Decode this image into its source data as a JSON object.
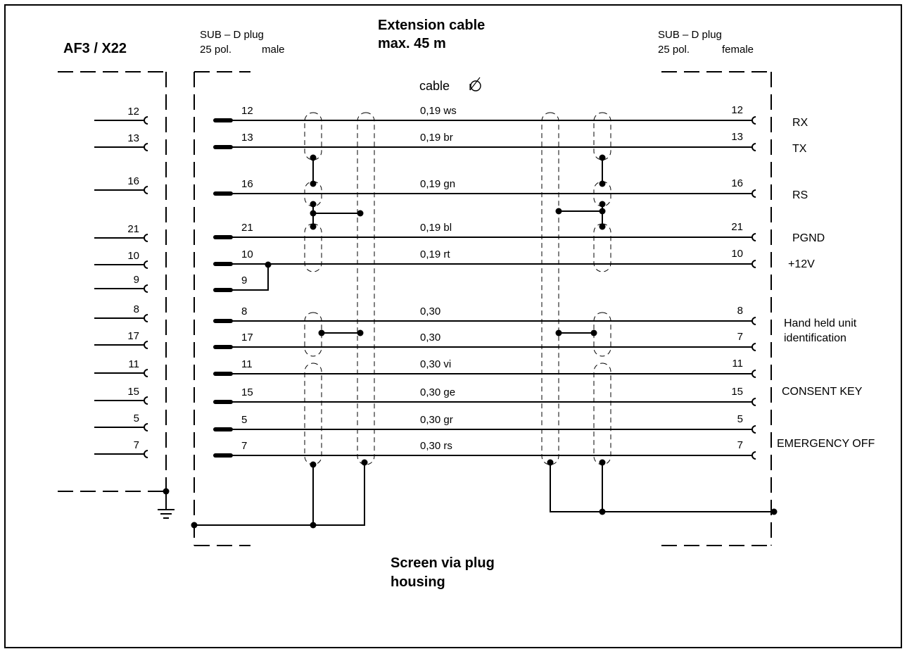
{
  "header": {
    "left_title": "AF3 / X22",
    "male_connector": {
      "line1": "SUB – D  plug",
      "pol": "25 pol.",
      "gender": "male"
    },
    "cable_title": {
      "line1": "Extension cable",
      "line2": "max. 45 m"
    },
    "female_connector": {
      "line1": "SUB – D  plug",
      "pol": "25 pol.",
      "gender": "female"
    },
    "cable_shield_label": "cable"
  },
  "left_pins": [
    "12",
    "13",
    "16",
    "21",
    "10",
    "9",
    "8",
    "17",
    "11",
    "15",
    "5",
    "7"
  ],
  "wires": [
    {
      "male_pin": "12",
      "spec": "0,19  ws",
      "female_pin": "12"
    },
    {
      "male_pin": "13",
      "spec": "0,19  br",
      "female_pin": "13"
    },
    {
      "male_pin": "16",
      "spec": "0,19 gn",
      "female_pin": "16"
    },
    {
      "male_pin": "21",
      "spec": "0,19  bl",
      "female_pin": "21"
    },
    {
      "male_pin": "10",
      "spec": "0,19  rt",
      "female_pin": "10"
    },
    {
      "male_pin": "9",
      "spec": "",
      "female_pin": ""
    },
    {
      "male_pin": "8",
      "spec": "0,30",
      "female_pin": "8"
    },
    {
      "male_pin": "17",
      "spec": "0,30",
      "female_pin": "7"
    },
    {
      "male_pin": "11",
      "spec": "0,30  vi",
      "female_pin": "11"
    },
    {
      "male_pin": "15",
      "spec": "0,30  ge",
      "female_pin": "15"
    },
    {
      "male_pin": "5",
      "spec": "0,30  gr",
      "female_pin": "5"
    },
    {
      "male_pin": "7",
      "spec": "0,30  rs",
      "female_pin": "7"
    }
  ],
  "signals": {
    "rx": "RX",
    "tx": "TX",
    "rs": "RS",
    "pgnd": "PGND",
    "plus12v": "+12V",
    "handheld_line1": "Hand held unit",
    "handheld_line2": "identification",
    "consent_key": "CONSENT KEY",
    "emergency_off": "EMERGENCY OFF"
  },
  "footer": {
    "line1": "Screen via plug",
    "line2": "housing"
  }
}
